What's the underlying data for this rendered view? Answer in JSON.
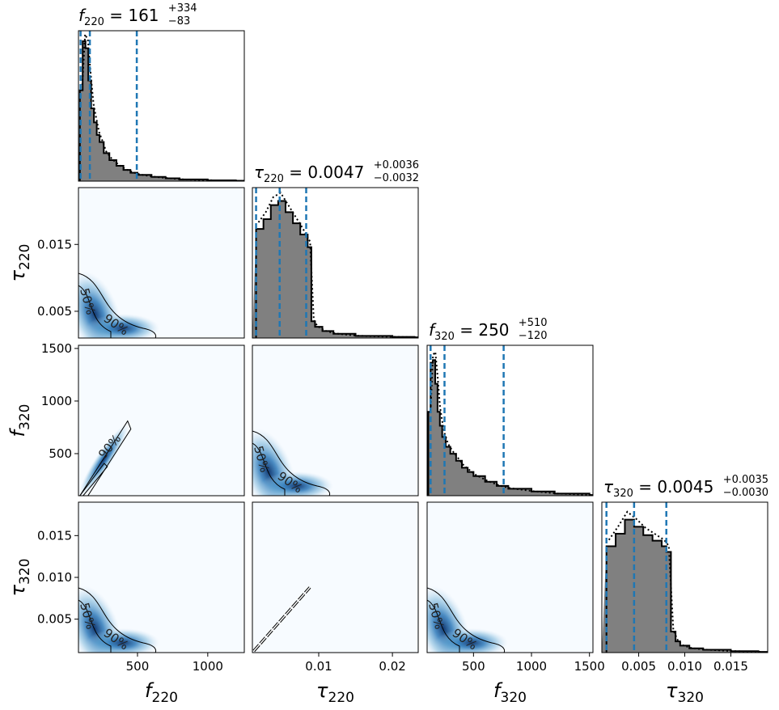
{
  "chart_data": {
    "type": "corner",
    "parameters": [
      {
        "key": "f220",
        "symbol": "f",
        "sub": "220",
        "range": [
          80,
          1260
        ],
        "ticks": [
          500,
          1000
        ],
        "tick_labels": [
          "500",
          "1000"
        ]
      },
      {
        "key": "tau220",
        "symbol": "τ",
        "sub": "220",
        "range": [
          0.001,
          0.0235
        ],
        "ticks": [
          0.01,
          0.02
        ],
        "tick_labels": [
          "0.01",
          "0.02"
        ],
        "y_ticks": [
          0.005,
          0.015
        ],
        "y_tick_labels": [
          "0.005",
          "0.015"
        ]
      },
      {
        "key": "f320",
        "symbol": "f",
        "sub": "320",
        "range": [
          100,
          1530
        ],
        "ticks": [
          500,
          1000,
          1500
        ],
        "tick_labels": [
          "500",
          "1000",
          "1500"
        ]
      },
      {
        "key": "tau320",
        "symbol": "τ",
        "sub": "320",
        "range": [
          0.001,
          0.019
        ],
        "ticks": [
          0.005,
          0.01,
          0.015
        ],
        "tick_labels": [
          "0.005",
          "0.010",
          "0.015"
        ]
      }
    ],
    "titles": [
      {
        "param": "f220",
        "prefix": "f",
        "sub": "220",
        "eq": " = 161",
        "plus": "+334",
        "minus": "−83"
      },
      {
        "param": "tau220",
        "prefix": "τ",
        "sub": "220",
        "eq": " = 0.0047",
        "plus": "+0.0036",
        "minus": "−0.0032"
      },
      {
        "param": "f320",
        "prefix": "f",
        "sub": "320",
        "eq": " = 250",
        "plus": "+510",
        "minus": "−120"
      },
      {
        "param": "tau320",
        "prefix": "τ",
        "sub": "320",
        "eq": " = 0.0045",
        "plus": "+0.0035",
        "minus": "−0.0030"
      }
    ],
    "quantiles": {
      "f220": [
        95,
        161,
        495
      ],
      "tau220": [
        0.0015,
        0.0047,
        0.0083
      ],
      "f320": [
        130,
        250,
        760
      ],
      "tau320": [
        0.0015,
        0.0045,
        0.008
      ]
    },
    "histograms": {
      "f220": {
        "x": [
          90,
          110,
          130,
          150,
          170,
          190,
          210,
          230,
          260,
          300,
          350,
          400,
          450,
          500,
          600,
          700,
          800,
          1000,
          1200
        ],
        "y": [
          0.65,
          1.0,
          0.95,
          0.72,
          0.52,
          0.42,
          0.33,
          0.28,
          0.2,
          0.15,
          0.11,
          0.08,
          0.06,
          0.045,
          0.03,
          0.02,
          0.012,
          0.006,
          0.003
        ]
      },
      "tau220": {
        "x": [
          0.0015,
          0.0025,
          0.0035,
          0.0045,
          0.0055,
          0.0065,
          0.0075,
          0.0085,
          0.009,
          0.0095,
          0.0105,
          0.012,
          0.015,
          0.02,
          0.023
        ],
        "y": [
          0.78,
          0.85,
          0.95,
          0.98,
          0.9,
          0.82,
          0.74,
          0.65,
          0.12,
          0.08,
          0.05,
          0.03,
          0.015,
          0.008,
          0.005
        ]
      },
      "f320": {
        "x": [
          110,
          130,
          150,
          170,
          190,
          210,
          230,
          260,
          300,
          350,
          400,
          450,
          500,
          600,
          700,
          800,
          1000,
          1200,
          1500
        ],
        "y": [
          0.6,
          0.95,
          0.97,
          0.8,
          0.6,
          0.5,
          0.42,
          0.35,
          0.3,
          0.25,
          0.2,
          0.17,
          0.14,
          0.1,
          0.07,
          0.05,
          0.03,
          0.015,
          0.005
        ]
      },
      "tau320": {
        "x": [
          0.0015,
          0.0025,
          0.0035,
          0.0045,
          0.0055,
          0.0065,
          0.0075,
          0.008,
          0.0085,
          0.009,
          0.0095,
          0.0105,
          0.012,
          0.015,
          0.018
        ],
        "y": [
          0.76,
          0.85,
          0.95,
          0.9,
          0.84,
          0.8,
          0.76,
          0.72,
          0.15,
          0.08,
          0.05,
          0.03,
          0.02,
          0.01,
          0.005
        ]
      }
    },
    "contour_labels": [
      "50%",
      "90%"
    ],
    "cmap": [
      "#f7fbff",
      "#c6dbef",
      "#6baed6",
      "#2171b5",
      "#08306b"
    ],
    "hist_fill": "#808080",
    "quantile_color": "#1f77b4"
  }
}
